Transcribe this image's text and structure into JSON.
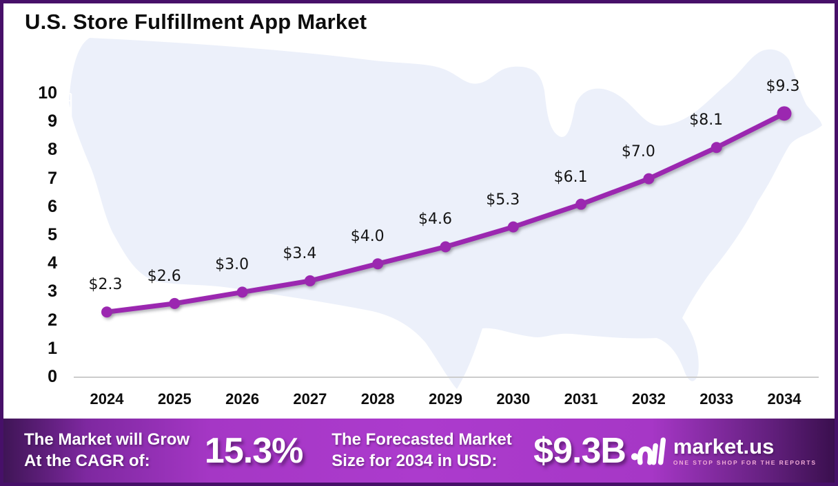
{
  "title": "U.S. Store Fulfillment App Market",
  "chart_data": {
    "type": "line",
    "x": [
      "2024",
      "2025",
      "2026",
      "2027",
      "2028",
      "2029",
      "2030",
      "2031",
      "2032",
      "2033",
      "2034"
    ],
    "values": [
      2.3,
      2.6,
      3.0,
      3.4,
      4.0,
      4.6,
      5.3,
      6.1,
      7.0,
      8.1,
      9.3
    ],
    "point_labels": [
      "$2.3",
      "$2.6",
      "$3.0",
      "$3.4",
      "$4.0",
      "$4.6",
      "$5.3",
      "$6.1",
      "$7.0",
      "$8.1",
      "$9.3"
    ],
    "title": "U.S. Store Fulfillment App Market",
    "xlabel": "",
    "ylabel": "",
    "ylim": [
      0,
      10
    ],
    "y_ticks": [
      0,
      1,
      2,
      3,
      4,
      5,
      6,
      7,
      8,
      9,
      10
    ],
    "grid": false,
    "legend": "none",
    "line_color": "#9b27b0",
    "marker": "circle"
  },
  "footer": {
    "cagr_label_line1": "The Market will Grow",
    "cagr_label_line2": "At the CAGR of:",
    "cagr_value": "15.3%",
    "forecast_label_line1": "The Forecasted Market",
    "forecast_label_line2": "Size for 2034 in USD:",
    "forecast_value": "$9.3B"
  },
  "logo": {
    "name": "market.us",
    "tagline": "ONE STOP SHOP FOR THE REPORTS"
  },
  "colors": {
    "line": "#9b27b0",
    "map_fill": "#ecf0fa",
    "frame_border": "#471069",
    "baseline": "#cccccc",
    "footer_purple": "#a737c7"
  }
}
